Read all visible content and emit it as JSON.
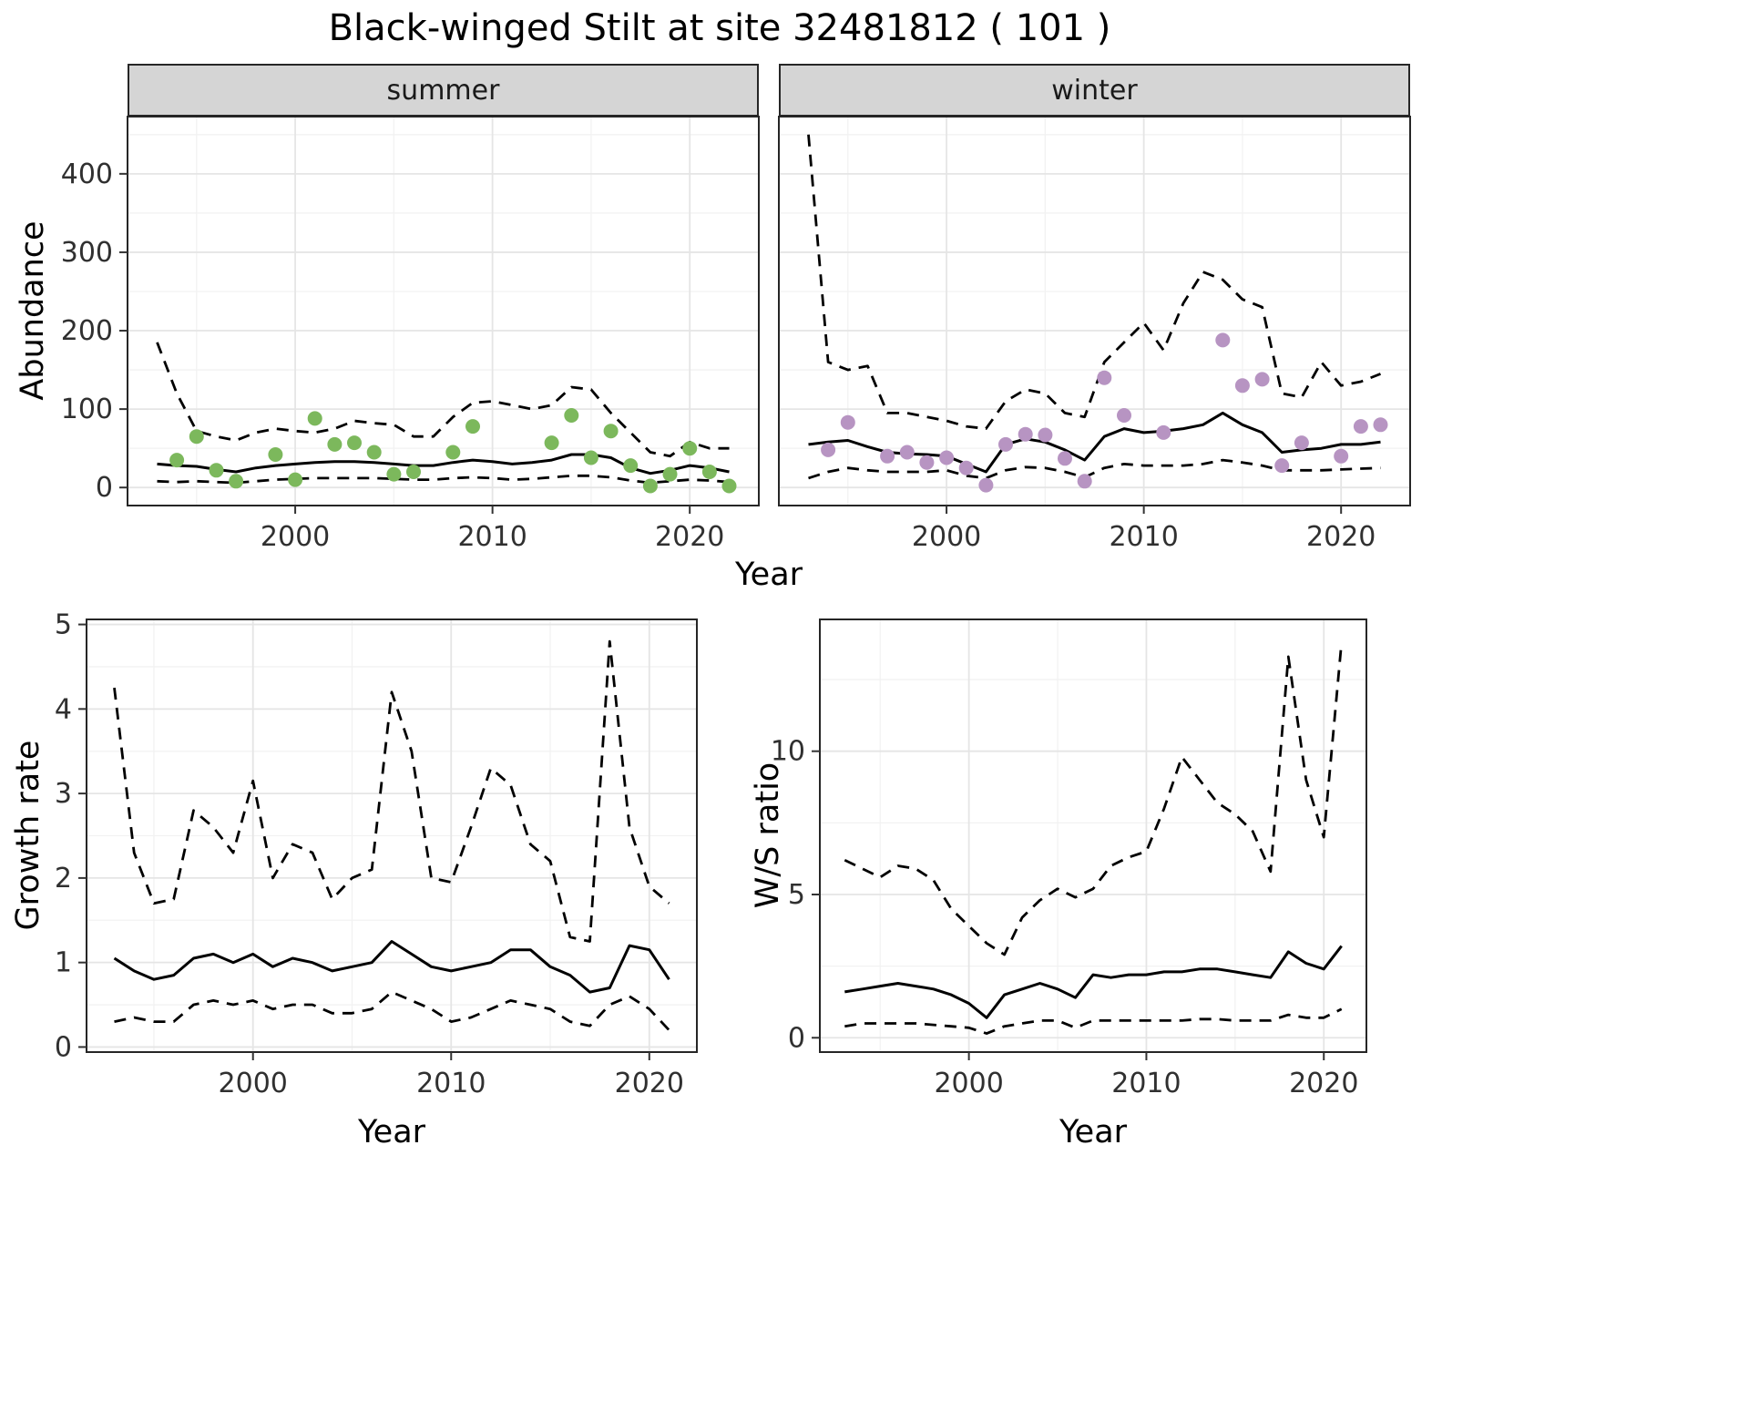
{
  "title": "Black-winged Stilt at site 32481812 ( 101 )",
  "colors": {
    "summer_point": "#7CB85C",
    "winter_point": "#B794C2",
    "fit_line": "#000000",
    "ci_line": "#000000",
    "strip_bg": "#D5D5D5",
    "grid_major": "#E5E5E5",
    "grid_minor": "#F2F2F2",
    "panel_border": "#262626",
    "tick_text": "#303030"
  },
  "chart_data": [
    {
      "id": "abundance-summer",
      "type": "scatter",
      "facet_label": "summer",
      "xlabel": "Year",
      "ylabel": "Abundance",
      "xlim": [
        1991.5,
        2023.5
      ],
      "ylim": [
        -23,
        473
      ],
      "xticks": [
        2000,
        2010,
        2020
      ],
      "yticks": [
        0,
        100,
        200,
        300,
        400
      ],
      "grid": true,
      "points": {
        "years": [
          1994,
          1995,
          1996,
          1997,
          1999,
          2000,
          2001,
          2002,
          2003,
          2004,
          2005,
          2006,
          2008,
          2009,
          2013,
          2014,
          2015,
          2016,
          2017,
          2018,
          2019,
          2020,
          2021,
          2022
        ],
        "values": [
          35,
          65,
          22,
          8,
          42,
          10,
          88,
          55,
          57,
          45,
          17,
          20,
          45,
          78,
          57,
          92,
          38,
          72,
          28,
          2,
          17,
          50,
          20,
          2
        ]
      },
      "fit": {
        "years": [
          1993,
          1994,
          1995,
          1996,
          1997,
          1998,
          1999,
          2000,
          2001,
          2002,
          2003,
          2004,
          2005,
          2006,
          2007,
          2008,
          2009,
          2010,
          2011,
          2012,
          2013,
          2014,
          2015,
          2016,
          2017,
          2018,
          2019,
          2020,
          2021,
          2022
        ],
        "values": [
          30,
          28,
          27,
          23,
          20,
          25,
          28,
          30,
          32,
          33,
          33,
          32,
          30,
          28,
          28,
          32,
          35,
          33,
          30,
          32,
          35,
          42,
          42,
          38,
          25,
          18,
          22,
          28,
          25,
          20
        ]
      },
      "upper": {
        "years": [
          1993,
          1994,
          1995,
          1996,
          1997,
          1998,
          1999,
          2000,
          2001,
          2002,
          2003,
          2004,
          2005,
          2006,
          2007,
          2008,
          2009,
          2010,
          2011,
          2012,
          2013,
          2014,
          2015,
          2016,
          2017,
          2018,
          2019,
          2020,
          2021,
          2022
        ],
        "values": [
          185,
          120,
          72,
          65,
          60,
          70,
          75,
          72,
          70,
          75,
          85,
          82,
          80,
          65,
          65,
          90,
          108,
          110,
          105,
          100,
          105,
          128,
          125,
          95,
          70,
          45,
          40,
          58,
          50,
          50
        ]
      },
      "lower": {
        "years": [
          1993,
          1994,
          1995,
          1996,
          1997,
          1998,
          1999,
          2000,
          2001,
          2002,
          2003,
          2004,
          2005,
          2006,
          2007,
          2008,
          2009,
          2010,
          2011,
          2012,
          2013,
          2014,
          2015,
          2016,
          2017,
          2018,
          2019,
          2020,
          2021,
          2022
        ],
        "values": [
          8,
          7,
          8,
          7,
          6,
          8,
          10,
          11,
          12,
          12,
          12,
          12,
          11,
          10,
          10,
          12,
          13,
          12,
          10,
          11,
          13,
          15,
          15,
          13,
          9,
          6,
          8,
          10,
          9,
          7
        ]
      }
    },
    {
      "id": "abundance-winter",
      "type": "scatter",
      "facet_label": "winter",
      "xlabel": "",
      "ylabel": "",
      "xlim": [
        1991.5,
        2023.5
      ],
      "ylim": [
        -23,
        473
      ],
      "xticks": [
        2000,
        2010,
        2020
      ],
      "yticks": [
        0,
        100,
        200,
        300,
        400
      ],
      "grid": true,
      "points": {
        "years": [
          1994,
          1995,
          1997,
          1998,
          1999,
          2000,
          2001,
          2002,
          2003,
          2004,
          2005,
          2006,
          2007,
          2008,
          2009,
          2011,
          2014,
          2015,
          2016,
          2017,
          2018,
          2020,
          2021,
          2022
        ],
        "values": [
          48,
          83,
          40,
          45,
          32,
          38,
          25,
          3,
          55,
          68,
          67,
          37,
          8,
          140,
          92,
          70,
          188,
          130,
          138,
          28,
          57,
          40,
          78,
          80
        ]
      },
      "fit": {
        "years": [
          1993,
          1994,
          1995,
          1996,
          1997,
          1998,
          1999,
          2000,
          2001,
          2002,
          2003,
          2004,
          2005,
          2006,
          2007,
          2008,
          2009,
          2010,
          2011,
          2012,
          2013,
          2014,
          2015,
          2016,
          2017,
          2018,
          2019,
          2020,
          2021,
          2022
        ],
        "values": [
          55,
          58,
          60,
          52,
          45,
          43,
          42,
          40,
          30,
          20,
          55,
          62,
          58,
          48,
          35,
          65,
          75,
          70,
          72,
          75,
          80,
          95,
          80,
          70,
          45,
          48,
          50,
          55,
          55,
          58
        ]
      },
      "upper": {
        "years": [
          1993,
          1994,
          1995,
          1996,
          1997,
          1998,
          1999,
          2000,
          2001,
          2002,
          2003,
          2004,
          2005,
          2006,
          2007,
          2008,
          2009,
          2010,
          2011,
          2012,
          2013,
          2014,
          2015,
          2016,
          2017,
          2018,
          2019,
          2020,
          2021,
          2022
        ],
        "values": [
          450,
          160,
          150,
          155,
          95,
          95,
          90,
          85,
          78,
          75,
          110,
          125,
          120,
          95,
          90,
          160,
          185,
          210,
          175,
          235,
          275,
          265,
          240,
          230,
          120,
          115,
          160,
          130,
          135,
          145
        ]
      },
      "lower": {
        "years": [
          1993,
          1994,
          1995,
          1996,
          1997,
          1998,
          1999,
          2000,
          2001,
          2002,
          2003,
          2004,
          2005,
          2006,
          2007,
          2008,
          2009,
          2010,
          2011,
          2012,
          2013,
          2014,
          2015,
          2016,
          2017,
          2018,
          2019,
          2020,
          2021,
          2022
        ],
        "values": [
          12,
          20,
          25,
          22,
          20,
          20,
          20,
          22,
          15,
          12,
          22,
          26,
          25,
          20,
          13,
          25,
          30,
          28,
          28,
          28,
          30,
          35,
          32,
          28,
          22,
          22,
          22,
          23,
          24,
          25
        ]
      }
    },
    {
      "id": "growth-rate",
      "type": "line",
      "facet_label": "",
      "xlabel": "Year",
      "ylabel": "Growth rate",
      "xlim": [
        1991.6,
        2022.4
      ],
      "ylim": [
        -0.06,
        5.06
      ],
      "xticks": [
        2000,
        2010,
        2020
      ],
      "yticks": [
        0,
        1,
        2,
        3,
        4,
        5
      ],
      "grid": true,
      "fit": {
        "years": [
          1993,
          1994,
          1995,
          1996,
          1997,
          1998,
          1999,
          2000,
          2001,
          2002,
          2003,
          2004,
          2005,
          2006,
          2007,
          2008,
          2009,
          2010,
          2011,
          2012,
          2013,
          2014,
          2015,
          2016,
          2017,
          2018,
          2019,
          2020,
          2021
        ],
        "values": [
          1.05,
          0.9,
          0.8,
          0.85,
          1.05,
          1.1,
          1.0,
          1.1,
          0.95,
          1.05,
          1.0,
          0.9,
          0.95,
          1.0,
          1.25,
          1.1,
          0.95,
          0.9,
          0.95,
          1.0,
          1.15,
          1.15,
          0.95,
          0.85,
          0.65,
          0.7,
          1.2,
          1.15,
          0.8
        ]
      },
      "upper": {
        "years": [
          1993,
          1994,
          1995,
          1996,
          1997,
          1998,
          1999,
          2000,
          2001,
          2002,
          2003,
          2004,
          2005,
          2006,
          2007,
          2008,
          2009,
          2010,
          2011,
          2012,
          2013,
          2014,
          2015,
          2016,
          2017,
          2018,
          2019,
          2020,
          2021
        ],
        "values": [
          4.25,
          2.3,
          1.7,
          1.75,
          2.8,
          2.6,
          2.3,
          3.15,
          2.0,
          2.4,
          2.3,
          1.75,
          2.0,
          2.1,
          4.2,
          3.5,
          2.0,
          1.95,
          2.6,
          3.3,
          3.1,
          2.4,
          2.2,
          1.3,
          1.25,
          4.8,
          2.6,
          1.9,
          1.7
        ]
      },
      "lower": {
        "years": [
          1993,
          1994,
          1995,
          1996,
          1997,
          1998,
          1999,
          2000,
          2001,
          2002,
          2003,
          2004,
          2005,
          2006,
          2007,
          2008,
          2009,
          2010,
          2011,
          2012,
          2013,
          2014,
          2015,
          2016,
          2017,
          2018,
          2019,
          2020,
          2021
        ],
        "values": [
          0.3,
          0.35,
          0.3,
          0.3,
          0.5,
          0.55,
          0.5,
          0.55,
          0.45,
          0.5,
          0.5,
          0.4,
          0.4,
          0.45,
          0.65,
          0.55,
          0.45,
          0.3,
          0.35,
          0.45,
          0.55,
          0.5,
          0.45,
          0.3,
          0.25,
          0.5,
          0.6,
          0.45,
          0.2
        ]
      }
    },
    {
      "id": "ws-ratio",
      "type": "line",
      "facet_label": "",
      "xlabel": "Year",
      "ylabel": "W/S ratio",
      "xlim": [
        1991.6,
        2022.4
      ],
      "ylim": [
        -0.5,
        14.6
      ],
      "xticks": [
        2000,
        2010,
        2020
      ],
      "yticks": [
        0,
        5,
        10
      ],
      "grid": true,
      "fit": {
        "years": [
          1993,
          1994,
          1995,
          1996,
          1997,
          1998,
          1999,
          2000,
          2001,
          2002,
          2003,
          2004,
          2005,
          2006,
          2007,
          2008,
          2009,
          2010,
          2011,
          2012,
          2013,
          2014,
          2015,
          2016,
          2017,
          2018,
          2019,
          2020,
          2021
        ],
        "values": [
          1.6,
          1.7,
          1.8,
          1.9,
          1.8,
          1.7,
          1.5,
          1.2,
          0.7,
          1.5,
          1.7,
          1.9,
          1.7,
          1.4,
          2.2,
          2.1,
          2.2,
          2.2,
          2.3,
          2.3,
          2.4,
          2.4,
          2.3,
          2.2,
          2.1,
          3.0,
          2.6,
          2.4,
          3.2
        ]
      },
      "upper": {
        "years": [
          1993,
          1994,
          1995,
          1996,
          1997,
          1998,
          1999,
          2000,
          2001,
          2002,
          2003,
          2004,
          2005,
          2006,
          2007,
          2008,
          2009,
          2010,
          2011,
          2012,
          2013,
          2014,
          2015,
          2016,
          2017,
          2018,
          2019,
          2020,
          2021
        ],
        "values": [
          6.2,
          5.9,
          5.6,
          6.0,
          5.9,
          5.5,
          4.5,
          3.9,
          3.3,
          2.9,
          4.2,
          4.8,
          5.2,
          4.9,
          5.2,
          6.0,
          6.3,
          6.5,
          8.0,
          9.8,
          9.0,
          8.2,
          7.8,
          7.2,
          5.8,
          13.3,
          9.0,
          7.0,
          13.8
        ]
      },
      "lower": {
        "years": [
          1993,
          1994,
          1995,
          1996,
          1997,
          1998,
          1999,
          2000,
          2001,
          2002,
          2003,
          2004,
          2005,
          2006,
          2007,
          2008,
          2009,
          2010,
          2011,
          2012,
          2013,
          2014,
          2015,
          2016,
          2017,
          2018,
          2019,
          2020,
          2021
        ],
        "values": [
          0.4,
          0.5,
          0.5,
          0.5,
          0.5,
          0.45,
          0.4,
          0.35,
          0.15,
          0.4,
          0.5,
          0.6,
          0.6,
          0.35,
          0.6,
          0.6,
          0.6,
          0.6,
          0.6,
          0.6,
          0.65,
          0.65,
          0.6,
          0.6,
          0.6,
          0.8,
          0.7,
          0.7,
          1.0
        ]
      }
    }
  ]
}
